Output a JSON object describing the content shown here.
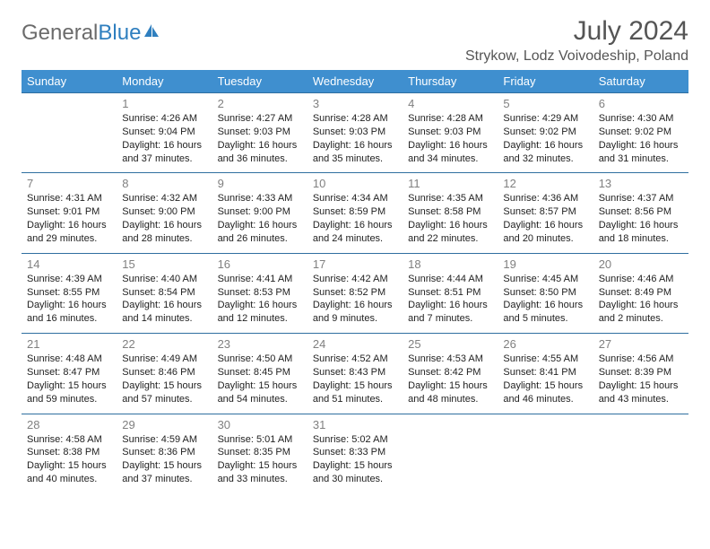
{
  "logo": {
    "text_gray": "General",
    "text_blue": "Blue"
  },
  "title": {
    "month": "July 2024",
    "location": "Strykow, Lodz Voivodeship, Poland"
  },
  "colors": {
    "header_bg": "#3f8fcf",
    "header_text": "#ffffff",
    "border": "#2f6fa0",
    "daynum": "#808080",
    "text": "#222222",
    "logo_gray": "#6b6b6b",
    "logo_blue": "#2f7fbf",
    "title_gray": "#555555"
  },
  "weekdays": [
    "Sunday",
    "Monday",
    "Tuesday",
    "Wednesday",
    "Thursday",
    "Friday",
    "Saturday"
  ],
  "weeks": [
    [
      null,
      {
        "day": "1",
        "sunrise": "Sunrise: 4:26 AM",
        "sunset": "Sunset: 9:04 PM",
        "daylight1": "Daylight: 16 hours",
        "daylight2": "and 37 minutes."
      },
      {
        "day": "2",
        "sunrise": "Sunrise: 4:27 AM",
        "sunset": "Sunset: 9:03 PM",
        "daylight1": "Daylight: 16 hours",
        "daylight2": "and 36 minutes."
      },
      {
        "day": "3",
        "sunrise": "Sunrise: 4:28 AM",
        "sunset": "Sunset: 9:03 PM",
        "daylight1": "Daylight: 16 hours",
        "daylight2": "and 35 minutes."
      },
      {
        "day": "4",
        "sunrise": "Sunrise: 4:28 AM",
        "sunset": "Sunset: 9:03 PM",
        "daylight1": "Daylight: 16 hours",
        "daylight2": "and 34 minutes."
      },
      {
        "day": "5",
        "sunrise": "Sunrise: 4:29 AM",
        "sunset": "Sunset: 9:02 PM",
        "daylight1": "Daylight: 16 hours",
        "daylight2": "and 32 minutes."
      },
      {
        "day": "6",
        "sunrise": "Sunrise: 4:30 AM",
        "sunset": "Sunset: 9:02 PM",
        "daylight1": "Daylight: 16 hours",
        "daylight2": "and 31 minutes."
      }
    ],
    [
      {
        "day": "7",
        "sunrise": "Sunrise: 4:31 AM",
        "sunset": "Sunset: 9:01 PM",
        "daylight1": "Daylight: 16 hours",
        "daylight2": "and 29 minutes."
      },
      {
        "day": "8",
        "sunrise": "Sunrise: 4:32 AM",
        "sunset": "Sunset: 9:00 PM",
        "daylight1": "Daylight: 16 hours",
        "daylight2": "and 28 minutes."
      },
      {
        "day": "9",
        "sunrise": "Sunrise: 4:33 AM",
        "sunset": "Sunset: 9:00 PM",
        "daylight1": "Daylight: 16 hours",
        "daylight2": "and 26 minutes."
      },
      {
        "day": "10",
        "sunrise": "Sunrise: 4:34 AM",
        "sunset": "Sunset: 8:59 PM",
        "daylight1": "Daylight: 16 hours",
        "daylight2": "and 24 minutes."
      },
      {
        "day": "11",
        "sunrise": "Sunrise: 4:35 AM",
        "sunset": "Sunset: 8:58 PM",
        "daylight1": "Daylight: 16 hours",
        "daylight2": "and 22 minutes."
      },
      {
        "day": "12",
        "sunrise": "Sunrise: 4:36 AM",
        "sunset": "Sunset: 8:57 PM",
        "daylight1": "Daylight: 16 hours",
        "daylight2": "and 20 minutes."
      },
      {
        "day": "13",
        "sunrise": "Sunrise: 4:37 AM",
        "sunset": "Sunset: 8:56 PM",
        "daylight1": "Daylight: 16 hours",
        "daylight2": "and 18 minutes."
      }
    ],
    [
      {
        "day": "14",
        "sunrise": "Sunrise: 4:39 AM",
        "sunset": "Sunset: 8:55 PM",
        "daylight1": "Daylight: 16 hours",
        "daylight2": "and 16 minutes."
      },
      {
        "day": "15",
        "sunrise": "Sunrise: 4:40 AM",
        "sunset": "Sunset: 8:54 PM",
        "daylight1": "Daylight: 16 hours",
        "daylight2": "and 14 minutes."
      },
      {
        "day": "16",
        "sunrise": "Sunrise: 4:41 AM",
        "sunset": "Sunset: 8:53 PM",
        "daylight1": "Daylight: 16 hours",
        "daylight2": "and 12 minutes."
      },
      {
        "day": "17",
        "sunrise": "Sunrise: 4:42 AM",
        "sunset": "Sunset: 8:52 PM",
        "daylight1": "Daylight: 16 hours",
        "daylight2": "and 9 minutes."
      },
      {
        "day": "18",
        "sunrise": "Sunrise: 4:44 AM",
        "sunset": "Sunset: 8:51 PM",
        "daylight1": "Daylight: 16 hours",
        "daylight2": "and 7 minutes."
      },
      {
        "day": "19",
        "sunrise": "Sunrise: 4:45 AM",
        "sunset": "Sunset: 8:50 PM",
        "daylight1": "Daylight: 16 hours",
        "daylight2": "and 5 minutes."
      },
      {
        "day": "20",
        "sunrise": "Sunrise: 4:46 AM",
        "sunset": "Sunset: 8:49 PM",
        "daylight1": "Daylight: 16 hours",
        "daylight2": "and 2 minutes."
      }
    ],
    [
      {
        "day": "21",
        "sunrise": "Sunrise: 4:48 AM",
        "sunset": "Sunset: 8:47 PM",
        "daylight1": "Daylight: 15 hours",
        "daylight2": "and 59 minutes."
      },
      {
        "day": "22",
        "sunrise": "Sunrise: 4:49 AM",
        "sunset": "Sunset: 8:46 PM",
        "daylight1": "Daylight: 15 hours",
        "daylight2": "and 57 minutes."
      },
      {
        "day": "23",
        "sunrise": "Sunrise: 4:50 AM",
        "sunset": "Sunset: 8:45 PM",
        "daylight1": "Daylight: 15 hours",
        "daylight2": "and 54 minutes."
      },
      {
        "day": "24",
        "sunrise": "Sunrise: 4:52 AM",
        "sunset": "Sunset: 8:43 PM",
        "daylight1": "Daylight: 15 hours",
        "daylight2": "and 51 minutes."
      },
      {
        "day": "25",
        "sunrise": "Sunrise: 4:53 AM",
        "sunset": "Sunset: 8:42 PM",
        "daylight1": "Daylight: 15 hours",
        "daylight2": "and 48 minutes."
      },
      {
        "day": "26",
        "sunrise": "Sunrise: 4:55 AM",
        "sunset": "Sunset: 8:41 PM",
        "daylight1": "Daylight: 15 hours",
        "daylight2": "and 46 minutes."
      },
      {
        "day": "27",
        "sunrise": "Sunrise: 4:56 AM",
        "sunset": "Sunset: 8:39 PM",
        "daylight1": "Daylight: 15 hours",
        "daylight2": "and 43 minutes."
      }
    ],
    [
      {
        "day": "28",
        "sunrise": "Sunrise: 4:58 AM",
        "sunset": "Sunset: 8:38 PM",
        "daylight1": "Daylight: 15 hours",
        "daylight2": "and 40 minutes."
      },
      {
        "day": "29",
        "sunrise": "Sunrise: 4:59 AM",
        "sunset": "Sunset: 8:36 PM",
        "daylight1": "Daylight: 15 hours",
        "daylight2": "and 37 minutes."
      },
      {
        "day": "30",
        "sunrise": "Sunrise: 5:01 AM",
        "sunset": "Sunset: 8:35 PM",
        "daylight1": "Daylight: 15 hours",
        "daylight2": "and 33 minutes."
      },
      {
        "day": "31",
        "sunrise": "Sunrise: 5:02 AM",
        "sunset": "Sunset: 8:33 PM",
        "daylight1": "Daylight: 15 hours",
        "daylight2": "and 30 minutes."
      },
      null,
      null,
      null
    ]
  ]
}
